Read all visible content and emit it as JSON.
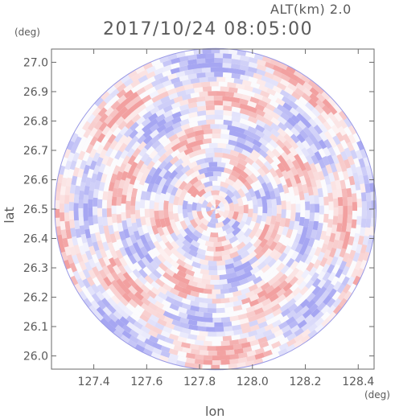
{
  "header": {
    "altitude_label": "ALT(km) 2.0",
    "timestamp": "2017/10/24 08:05:00"
  },
  "colors": {
    "positive": "#f2a0a0",
    "negative": "#a6a6f2",
    "axis": "#6a6a6a",
    "text": "#5a5a5a"
  },
  "chart_data": {
    "type": "heatmap",
    "plot_style": "radar PPI (polar) field clipped to a circular coverage area",
    "xlabel": "lon",
    "ylabel": "lat",
    "xunit": "(deg)",
    "yunit": "(deg)",
    "xlim": [
      127.24,
      128.46
    ],
    "ylim": [
      25.955,
      27.045
    ],
    "x_ticks": [
      127.4,
      127.6,
      127.8,
      128.0,
      128.2,
      128.4
    ],
    "x_tick_labels": [
      "127.4",
      "127.6",
      "127.8",
      "128.0",
      "128.2",
      "128.4"
    ],
    "y_ticks": [
      26.0,
      26.1,
      26.2,
      26.3,
      26.4,
      26.5,
      26.6,
      26.7,
      26.8,
      26.9,
      27.0
    ],
    "y_tick_labels": [
      "26.0",
      "26.1",
      "26.2",
      "26.3",
      "26.4",
      "26.5",
      "26.6",
      "26.7",
      "26.8",
      "26.9",
      "27.0"
    ],
    "center": {
      "lon": 127.86,
      "lat": 26.5
    },
    "coverage_radius_lon_deg": 0.61,
    "coverage_radius_lat_deg": 0.545,
    "colormap": "diverging blue-white-red, low amplitude (pale pink / pale blue)",
    "grid": false,
    "legend": "none"
  }
}
